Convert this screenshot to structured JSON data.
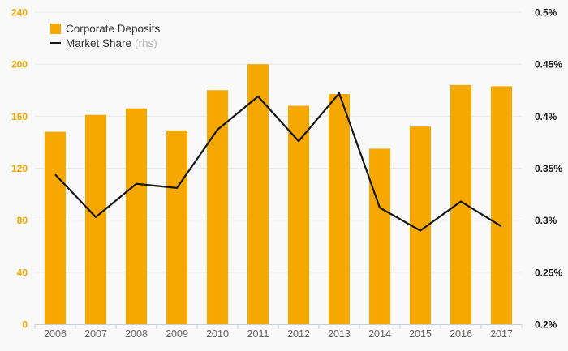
{
  "chart_data": {
    "type": "bar",
    "categories": [
      "2006",
      "2007",
      "2008",
      "2009",
      "2010",
      "2011",
      "2012",
      "2013",
      "2014",
      "2015",
      "2016",
      "2017"
    ],
    "series": [
      {
        "name": "Corporate Deposits",
        "type": "bar",
        "axis": "left",
        "values": [
          148,
          161,
          166,
          149,
          180,
          200,
          168,
          177,
          135,
          152,
          184,
          183
        ]
      },
      {
        "name": "Market Share",
        "type": "line",
        "axis": "right",
        "values": [
          0.344,
          0.303,
          0.335,
          0.331,
          0.387,
          0.419,
          0.376,
          0.422,
          0.312,
          0.29,
          0.318,
          0.294
        ]
      }
    ],
    "left_axis": {
      "min": 0,
      "max": 240,
      "step": 40,
      "labels": [
        "0",
        "40",
        "80",
        "120",
        "160",
        "200",
        "240"
      ]
    },
    "right_axis": {
      "min": 0.2,
      "max": 0.5,
      "step": 0.05,
      "labels": [
        "0.2%",
        "0.25%",
        "0.3%",
        "0.35%",
        "0.4%",
        "0.45%",
        "0.5%"
      ]
    },
    "legend": [
      {
        "label": "Corporate Deposits"
      },
      {
        "label": "Market Share",
        "note": "(rhs)"
      }
    ],
    "colors": {
      "bar": "#F6A800",
      "line": "#161616",
      "background": "#f9f9f9",
      "gridline": "#e8e8e8",
      "axis_line": "#c6ccd8",
      "year_label": "#606060",
      "right_label": "#1a1a1a"
    }
  }
}
